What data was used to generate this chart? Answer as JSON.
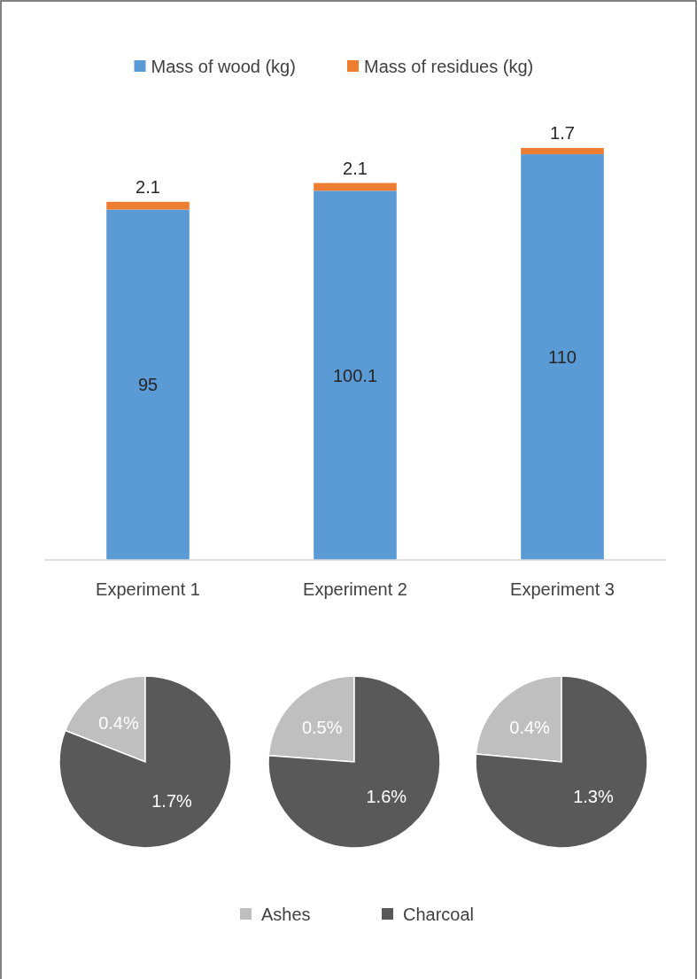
{
  "chart_data": [
    {
      "type": "bar",
      "stacked": true,
      "categories": [
        "Experiment 1",
        "Experiment 2",
        "Experiment 3"
      ],
      "series": [
        {
          "name": "Mass of wood (kg)",
          "color": "#5b9bd5",
          "values": [
            95,
            100.1,
            110
          ]
        },
        {
          "name": "Mass of residues (kg)",
          "color": "#ed7d31",
          "values": [
            2.1,
            2.1,
            1.7
          ]
        }
      ],
      "data_labels": true,
      "legend": "top"
    },
    {
      "type": "pie",
      "values": [
        0.4,
        1.7
      ],
      "colors": [
        "#bfbfbf",
        "#595959"
      ],
      "value_labels": [
        "0.4%",
        "1.7%"
      ]
    },
    {
      "type": "pie",
      "categories": [
        "Ashes",
        "Charcoal"
      ],
      "values": [
        0.5,
        1.6
      ],
      "colors": [
        "#bfbfbf",
        "#595959"
      ],
      "value_labels": [
        "0.5%",
        "1.6%"
      ],
      "legend": "bottom"
    },
    {
      "type": "pie",
      "values": [
        0.4,
        1.3
      ],
      "colors": [
        "#bfbfbf",
        "#595959"
      ],
      "value_labels": [
        "0.4%",
        "1.3%"
      ]
    }
  ]
}
